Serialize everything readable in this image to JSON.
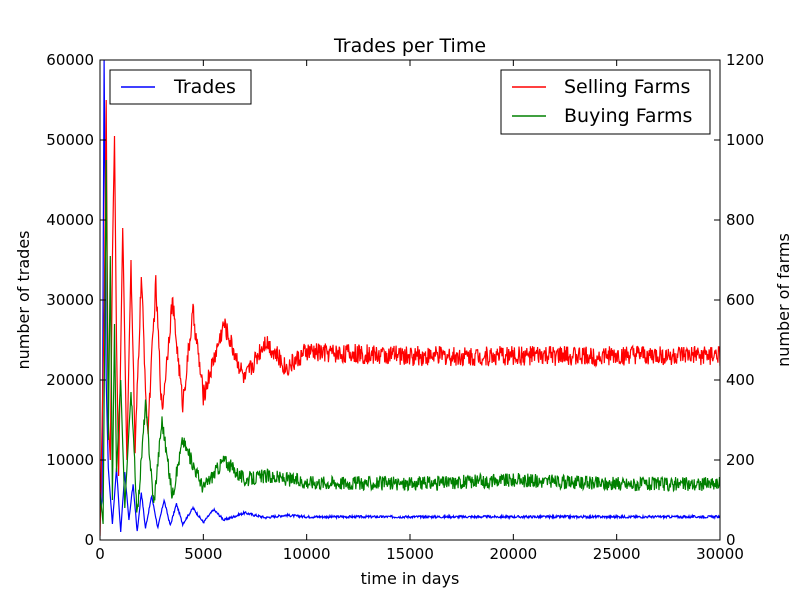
{
  "chart_data": {
    "type": "line",
    "title": "Trades per Time",
    "xlabel": "time in days",
    "ylabel_left": "number of trades",
    "ylabel_right": "number of farms",
    "xlim": [
      0,
      30000
    ],
    "ylim_left": [
      0,
      60000
    ],
    "ylim_right": [
      0,
      1200
    ],
    "x_ticks": [
      "0",
      "5000",
      "10000",
      "15000",
      "20000",
      "25000",
      "30000"
    ],
    "y_left_ticks": [
      "0",
      "10000",
      "20000",
      "30000",
      "40000",
      "50000",
      "60000"
    ],
    "y_right_ticks": [
      "0",
      "200",
      "400",
      "600",
      "800",
      "1000",
      "1200"
    ],
    "grid": false,
    "legends": [
      {
        "placement": "top-left",
        "entries": [
          "Trades"
        ]
      },
      {
        "placement": "top-right",
        "entries": [
          "Selling Farms",
          "Buying Farms"
        ]
      }
    ],
    "series": [
      {
        "name": "Trades",
        "axis": "left",
        "color": "#0000ff",
        "points": [
          [
            0,
            3000
          ],
          [
            100,
            5000
          ],
          [
            200,
            60000
          ],
          [
            300,
            20000
          ],
          [
            400,
            9000
          ],
          [
            600,
            2000
          ],
          [
            800,
            9000
          ],
          [
            1000,
            1000
          ],
          [
            1200,
            8500
          ],
          [
            1400,
            2500
          ],
          [
            1600,
            7000
          ],
          [
            1800,
            1000
          ],
          [
            2000,
            6000
          ],
          [
            2200,
            1500
          ],
          [
            2500,
            5500
          ],
          [
            2800,
            1500
          ],
          [
            3100,
            5000
          ],
          [
            3400,
            1800
          ],
          [
            3700,
            4500
          ],
          [
            4000,
            2000
          ],
          [
            4500,
            4000
          ],
          [
            5000,
            2200
          ],
          [
            5500,
            3800
          ],
          [
            6000,
            2500
          ],
          [
            7000,
            3400
          ],
          [
            8000,
            2800
          ],
          [
            9000,
            3100
          ],
          [
            10000,
            2900
          ],
          [
            15000,
            2900
          ],
          [
            20000,
            2900
          ],
          [
            25000,
            2900
          ],
          [
            30000,
            2900
          ]
        ],
        "noise": 150
      },
      {
        "name": "Selling Farms",
        "axis": "right",
        "color": "#ff0000",
        "points": [
          [
            0,
            10
          ],
          [
            200,
            560
          ],
          [
            300,
            1100
          ],
          [
            400,
            300
          ],
          [
            500,
            200
          ],
          [
            600,
            700
          ],
          [
            700,
            1010
          ],
          [
            800,
            500
          ],
          [
            900,
            160
          ],
          [
            1100,
            780
          ],
          [
            1300,
            200
          ],
          [
            1500,
            700
          ],
          [
            1700,
            220
          ],
          [
            2000,
            660
          ],
          [
            2300,
            260
          ],
          [
            2700,
            640
          ],
          [
            3000,
            320
          ],
          [
            3500,
            600
          ],
          [
            4000,
            340
          ],
          [
            4500,
            570
          ],
          [
            5000,
            360
          ],
          [
            6000,
            540
          ],
          [
            7000,
            400
          ],
          [
            8000,
            500
          ],
          [
            9000,
            430
          ],
          [
            10000,
            470
          ],
          [
            15000,
            460
          ],
          [
            20000,
            460
          ],
          [
            25000,
            460
          ],
          [
            30000,
            460
          ]
        ],
        "noise": 25
      },
      {
        "name": "Buying Farms",
        "axis": "right",
        "color": "#008000",
        "points": [
          [
            0,
            120
          ],
          [
            150,
            40
          ],
          [
            300,
            950
          ],
          [
            400,
            250
          ],
          [
            500,
            710
          ],
          [
            600,
            100
          ],
          [
            700,
            540
          ],
          [
            800,
            170
          ],
          [
            1000,
            400
          ],
          [
            1200,
            80
          ],
          [
            1500,
            370
          ],
          [
            1800,
            60
          ],
          [
            2200,
            340
          ],
          [
            2600,
            90
          ],
          [
            3000,
            300
          ],
          [
            3500,
            110
          ],
          [
            4000,
            250
          ],
          [
            5000,
            130
          ],
          [
            6000,
            200
          ],
          [
            7000,
            150
          ],
          [
            8000,
            160
          ],
          [
            10000,
            145
          ],
          [
            15000,
            140
          ],
          [
            20000,
            150
          ],
          [
            25000,
            140
          ],
          [
            30000,
            140
          ]
        ],
        "noise": 18
      }
    ]
  }
}
